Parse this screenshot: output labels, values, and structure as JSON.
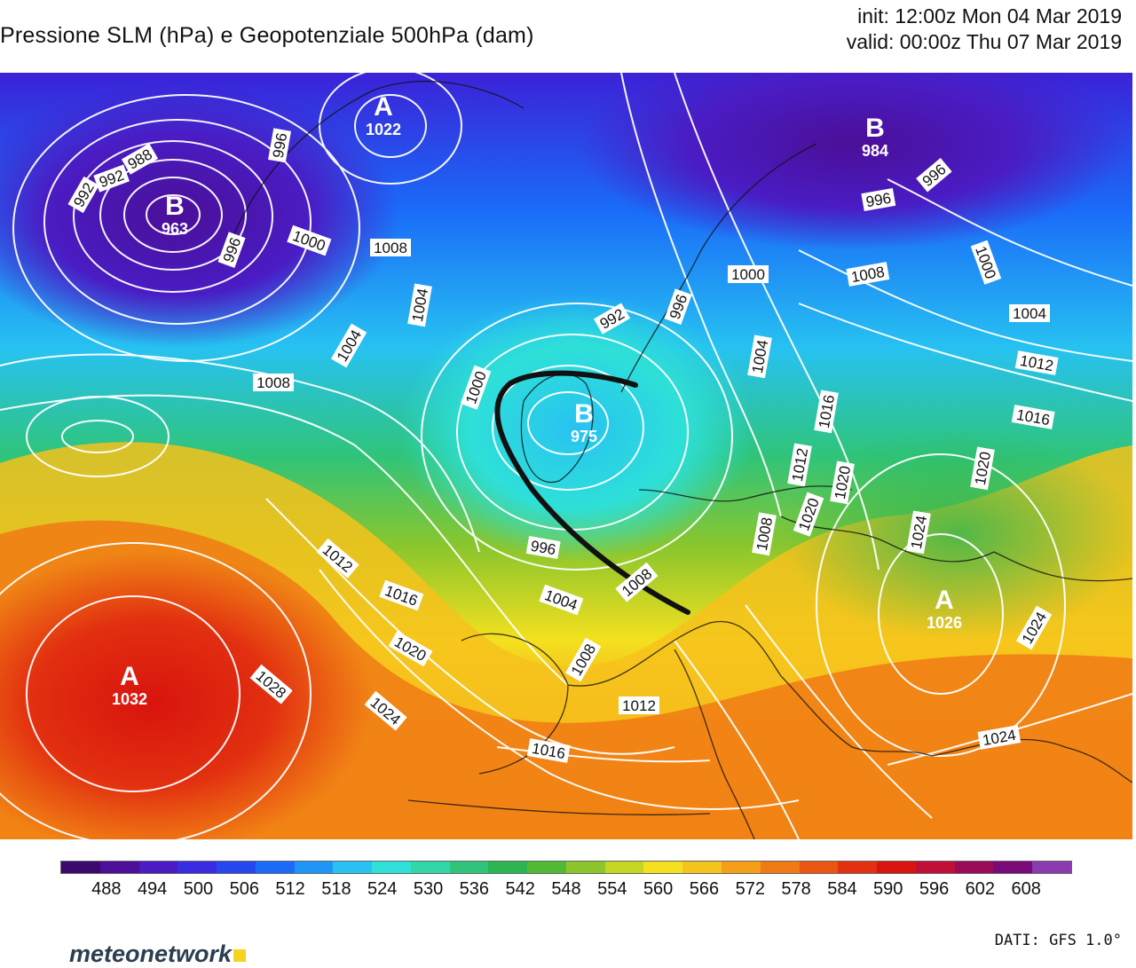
{
  "header": {
    "title": "Pressione SLM (hPa) e Geopotenziale 500hPa (dam)",
    "init": "init: 12:00z Mon 04 Mar 2019",
    "valid": "valid: 00:00z Thu 07 Mar 2019"
  },
  "pressure_centers": [
    {
      "letter": "A",
      "value": "1022"
    },
    {
      "letter": "B",
      "value": "963"
    },
    {
      "letter": "B",
      "value": "984"
    },
    {
      "letter": "B",
      "value": "975"
    },
    {
      "letter": "A",
      "value": "1032"
    },
    {
      "letter": "A",
      "value": "1026"
    }
  ],
  "isobar_labels": [
    "988",
    "992",
    "996",
    "996",
    "1000",
    "1008",
    "1004",
    "1004",
    "1008",
    "992",
    "996",
    "1000",
    "1000",
    "1008",
    "1004",
    "1004",
    "1012",
    "1016",
    "1016",
    "1012",
    "1020",
    "1020",
    "1024",
    "1024",
    "1008",
    "996",
    "1004",
    "1008",
    "1012",
    "1016",
    "1020",
    "1028",
    "1024",
    "1012",
    "1016",
    "1008",
    "1020",
    "1024",
    "992",
    "996",
    "996",
    "1000"
  ],
  "colorbar": {
    "unit_note": "",
    "tick_labels": [
      "488",
      "494",
      "500",
      "506",
      "512",
      "518",
      "524",
      "530",
      "536",
      "542",
      "548",
      "554",
      "560",
      "566",
      "572",
      "578",
      "584",
      "590",
      "596",
      "602",
      "608"
    ],
    "colors": [
      "#3a0a6e",
      "#4b0f98",
      "#4a1cc4",
      "#3a2ce0",
      "#2646f0",
      "#1a6cf8",
      "#1f96f7",
      "#27c2f1",
      "#2ee0d8",
      "#33d6a8",
      "#2fc47a",
      "#2cb552",
      "#52b934",
      "#8cc62c",
      "#c5d524",
      "#f4e01f",
      "#f6c21c",
      "#f59f18",
      "#f07a14",
      "#ea5512",
      "#e23010",
      "#d8140e",
      "#c01038",
      "#9a0c58",
      "#7a0a78",
      "#8c3ab0"
    ]
  },
  "footer": {
    "brand": "meteonetwork",
    "source": "DATI: GFS 1.0°"
  }
}
